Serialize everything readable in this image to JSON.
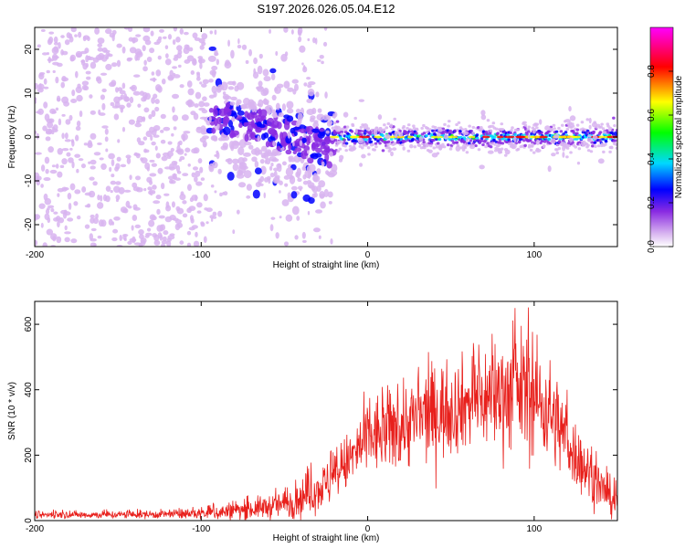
{
  "title": "S197.2026.026.05.04.E12",
  "colors": {
    "snr_line": "#e8201c",
    "colormap": [
      "#ffffff",
      "#d8b4f0",
      "#8a2be2",
      "#0000ff",
      "#00d8ff",
      "#00ff00",
      "#ffff00",
      "#ff0000",
      "#ff00ff"
    ]
  },
  "chart_data": [
    {
      "type": "heatmap",
      "xlabel": "Height of straight line (km)",
      "ylabel": "Frequency (Hz)",
      "xlim": [
        -200,
        150
      ],
      "ylim": [
        -25,
        25
      ],
      "xticks": [
        -200,
        -100,
        0,
        100
      ],
      "xtick_labels": [
        "-200",
        "-100",
        "0",
        "100"
      ],
      "yticks": [
        -20,
        -10,
        0,
        10,
        20
      ],
      "ytick_labels": [
        "-20",
        "-10",
        "0",
        "10",
        "20"
      ],
      "colorbar": {
        "label": "Normalized spectral amplitude",
        "range": [
          0,
          1
        ],
        "ticks": [
          0,
          0.2,
          0.4,
          0.6,
          0.8
        ],
        "tick_labels": [
          "0.0",
          "0.2",
          "0.4",
          "0.6",
          "0.8"
        ]
      },
      "features": [
        {
          "region": "noise",
          "x": [
            -200,
            -95
          ],
          "y": [
            -25,
            25
          ],
          "amplitude": "low"
        },
        {
          "region": "transition",
          "x": [
            -95,
            -20
          ],
          "y_center": [
            5,
            -3
          ],
          "spread": 8,
          "amplitude": "medium"
        },
        {
          "region": "signal line",
          "x": [
            -20,
            150
          ],
          "y": 0,
          "spread": 1.5,
          "amplitude": "high"
        }
      ]
    },
    {
      "type": "line",
      "series": [
        {
          "name": "SNR"
        }
      ],
      "xlabel": "Height of straight line (km)",
      "ylabel": "SNR (10 * v/v)",
      "xlim": [
        -200,
        150
      ],
      "ylim": [
        0,
        670
      ],
      "xticks": [
        -200,
        -100,
        0,
        100
      ],
      "xtick_labels": [
        "-200",
        "-100",
        "0",
        "100"
      ],
      "yticks": [
        0,
        200,
        400,
        600
      ],
      "ytick_labels": [
        "0",
        "200",
        "400",
        "600"
      ],
      "envelope": {
        "x": [
          -200,
          -150,
          -110,
          -90,
          -70,
          -50,
          -40,
          -30,
          -20,
          -10,
          0,
          20,
          40,
          60,
          80,
          95,
          110,
          125,
          140,
          150
        ],
        "mean": [
          18,
          18,
          20,
          25,
          35,
          50,
          70,
          95,
          130,
          190,
          250,
          290,
          330,
          360,
          390,
          400,
          330,
          200,
          100,
          50
        ],
        "peak": [
          35,
          35,
          40,
          60,
          80,
          110,
          160,
          190,
          240,
          320,
          420,
          480,
          540,
          560,
          640,
          670,
          550,
          350,
          200,
          120
        ]
      }
    }
  ]
}
